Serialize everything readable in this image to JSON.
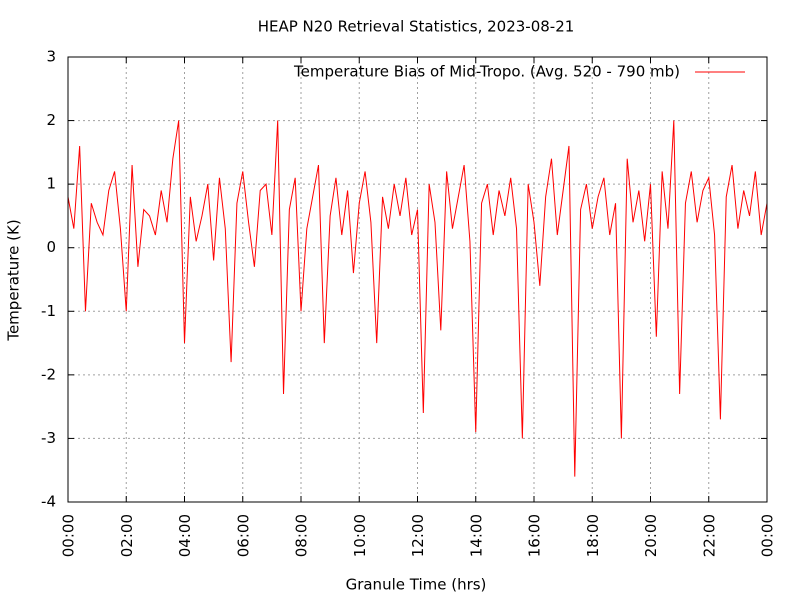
{
  "chart_data": {
    "type": "line",
    "title": "HEAP N20 Retrieval Statistics, 2023-08-21",
    "x_label": "Granule Time (hrs)",
    "y_label": "Temperature (K)",
    "x": [
      0,
      0.2,
      0.4,
      0.6,
      0.8,
      1,
      1.2,
      1.4,
      1.6,
      1.8,
      2,
      2.2,
      2.4,
      2.6,
      2.8,
      3,
      3.2,
      3.4,
      3.6,
      3.8,
      4,
      4.2,
      4.4,
      4.6,
      4.8,
      5,
      5.2,
      5.4,
      5.6,
      5.8,
      6,
      6.2,
      6.4,
      6.6,
      6.8,
      7,
      7.2,
      7.4,
      7.6,
      7.8,
      8,
      8.2,
      8.4,
      8.6,
      8.8,
      9,
      9.2,
      9.4,
      9.6,
      9.8,
      10,
      10.2,
      10.4,
      10.6,
      10.8,
      11,
      11.2,
      11.4,
      11.6,
      11.8,
      12,
      12.2,
      12.4,
      12.6,
      12.8,
      13,
      13.2,
      13.4,
      13.6,
      13.8,
      14,
      14.2,
      14.4,
      14.6,
      14.8,
      15,
      15.2,
      15.4,
      15.6,
      15.8,
      16,
      16.2,
      16.4,
      16.6,
      16.8,
      17,
      17.2,
      17.4,
      17.6,
      17.8,
      18,
      18.2,
      18.4,
      18.6,
      18.8,
      19,
      19.2,
      19.4,
      19.6,
      19.8,
      20,
      20.2,
      20.4,
      20.6,
      20.8,
      21,
      21.2,
      21.4,
      21.6,
      21.8,
      22,
      22.2,
      22.4,
      22.6,
      22.8,
      23,
      23.2,
      23.4,
      23.6,
      23.8,
      24
    ],
    "series": [
      {
        "name": "Temperature Bias of Mid-Tropo. (Avg. 520 - 790 mb)",
        "color": "#ff0000",
        "values": [
          0.8,
          0.3,
          1.6,
          -1.0,
          0.7,
          0.4,
          0.2,
          0.9,
          1.2,
          0.3,
          -1.0,
          1.3,
          -0.3,
          0.6,
          0.5,
          0.2,
          0.9,
          0.4,
          1.4,
          2.0,
          -1.5,
          0.8,
          0.1,
          0.5,
          1.0,
          -0.2,
          1.1,
          0.3,
          -1.8,
          0.7,
          1.2,
          0.4,
          -0.3,
          0.9,
          1.0,
          0.2,
          2.0,
          -2.3,
          0.6,
          1.1,
          -1.0,
          0.3,
          0.8,
          1.3,
          -1.5,
          0.5,
          1.1,
          0.2,
          0.9,
          -0.4,
          0.7,
          1.2,
          0.4,
          -1.5,
          0.8,
          0.3,
          1.0,
          0.5,
          1.1,
          0.2,
          0.6,
          -2.6,
          1.0,
          0.4,
          -1.3,
          1.2,
          0.3,
          0.8,
          1.3,
          0.1,
          -2.9,
          0.7,
          1.0,
          0.2,
          0.9,
          0.5,
          1.1,
          0.3,
          -3.0,
          1.0,
          0.4,
          -0.6,
          0.8,
          1.4,
          0.2,
          0.9,
          1.6,
          -3.6,
          0.6,
          1.0,
          0.3,
          0.8,
          1.1,
          0.2,
          0.7,
          -3.0,
          1.4,
          0.4,
          0.9,
          0.1,
          1.0,
          -1.4,
          1.2,
          0.3,
          2.0,
          -2.3,
          0.7,
          1.2,
          0.4,
          0.9,
          1.1,
          0.2,
          -2.7,
          0.8,
          1.3,
          0.3,
          0.9,
          0.5,
          1.2,
          0.2,
          0.7
        ]
      }
    ],
    "xlim": [
      0,
      24
    ],
    "ylim": [
      -4,
      3
    ],
    "xticks": [
      {
        "value": 0,
        "label": "00:00"
      },
      {
        "value": 2,
        "label": "02:00"
      },
      {
        "value": 4,
        "label": "04:00"
      },
      {
        "value": 6,
        "label": "06:00"
      },
      {
        "value": 8,
        "label": "08:00"
      },
      {
        "value": 10,
        "label": "10:00"
      },
      {
        "value": 12,
        "label": "12:00"
      },
      {
        "value": 14,
        "label": "14:00"
      },
      {
        "value": 16,
        "label": "16:00"
      },
      {
        "value": 18,
        "label": "18:00"
      },
      {
        "value": 20,
        "label": "20:00"
      },
      {
        "value": 22,
        "label": "22:00"
      },
      {
        "value": 24,
        "label": "00:00"
      }
    ],
    "yticks": [
      3,
      2,
      1,
      0,
      -1,
      -2,
      -3,
      -4
    ],
    "grid": true,
    "legend": "top-right"
  }
}
